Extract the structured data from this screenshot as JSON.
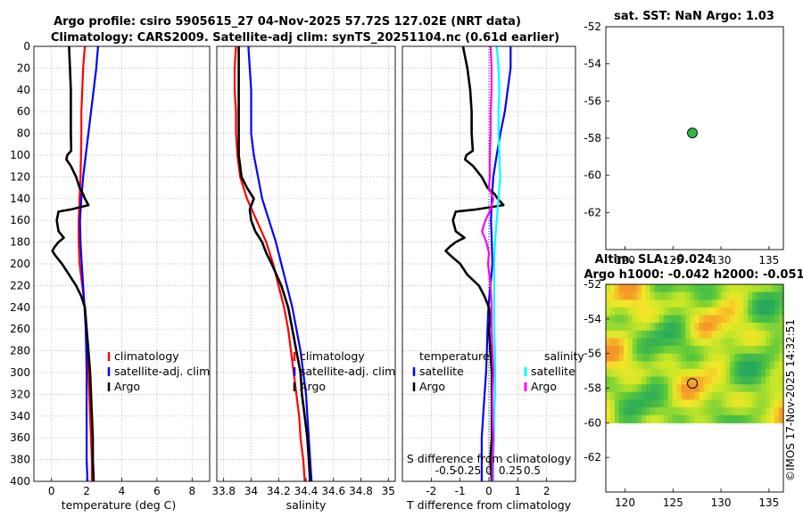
{
  "colors": {
    "climatology": "#ff0000",
    "satellite": "#0000ff",
    "argo": "#000000",
    "satellite_s": "#00ffff",
    "argo_s": "#ff00ff"
  },
  "chart_data": {
    "type": "line",
    "title_line1": "Argo profile: csiro 5905615_27 04-Nov-2025 57.72S 127.02E (NRT data)",
    "title_line2": "Climatology: CARS2009. Satellite-adj clim: synTS_20251104.nc (0.61d earlier)",
    "depth_ticks": [
      "0",
      "20",
      "40",
      "60",
      "80",
      "100",
      "120",
      "140",
      "160",
      "180",
      "200",
      "220",
      "240",
      "260",
      "280",
      "300",
      "320",
      "340",
      "360",
      "380",
      "400"
    ],
    "depth_range": [
      0,
      400
    ],
    "panels": [
      {
        "id": "temperature",
        "xlabel": "temperature (deg C)",
        "xlim": [
          -1,
          9
        ],
        "xticks": [
          0,
          2,
          4,
          6,
          8
        ],
        "xtick_labels": [
          "0",
          "2",
          "4",
          "6",
          "8"
        ],
        "legend": [
          "climatology",
          "satellite-adj. clim",
          "Argo"
        ],
        "series": [
          {
            "name": "climatology",
            "color_key": "climatology",
            "depth": [
              0,
              20,
              40,
              60,
              80,
              100,
              120,
              140,
              160,
              180,
              200,
              220,
              240,
              260,
              280,
              300,
              320,
              340,
              360,
              380,
              400
            ],
            "values": [
              1.9,
              1.8,
              1.75,
              1.7,
              1.7,
              1.68,
              1.65,
              1.6,
              1.55,
              1.55,
              1.6,
              1.75,
              1.9,
              2.0,
              2.05,
              2.1,
              2.15,
              2.2,
              2.25,
              2.3,
              2.3
            ]
          },
          {
            "name": "satellite-adj. clim",
            "color_key": "satellite",
            "depth": [
              0,
              20,
              40,
              60,
              80,
              100,
              120,
              140,
              160,
              180,
              200,
              220,
              240,
              260,
              280,
              300,
              320,
              340,
              360,
              380,
              400
            ],
            "values": [
              2.65,
              2.55,
              2.4,
              2.25,
              2.1,
              1.95,
              1.8,
              1.7,
              1.62,
              1.65,
              1.72,
              1.8,
              1.88,
              1.95,
              1.98,
              2.0,
              2.0,
              2.0,
              2.0,
              2.0,
              2.05
            ]
          },
          {
            "name": "Argo",
            "color_key": "argo",
            "depth": [
              0,
              20,
              40,
              60,
              80,
              96,
              100,
              104,
              110,
              120,
              130,
              136,
              140,
              146,
              150,
              152,
              160,
              170,
              176,
              180,
              184,
              188,
              192,
              200,
              210,
              220,
              230,
              240,
              250,
              260,
              270,
              280,
              290,
              300,
              320,
              340,
              360,
              380,
              400
            ],
            "values": [
              1.0,
              1.05,
              1.1,
              1.1,
              1.1,
              1.12,
              0.9,
              0.85,
              1.1,
              1.4,
              1.6,
              1.8,
              1.9,
              2.1,
              1.1,
              0.4,
              0.3,
              0.4,
              0.7,
              0.4,
              0.2,
              0.05,
              0.2,
              0.6,
              1.0,
              1.4,
              1.7,
              1.9,
              1.95,
              2.0,
              2.05,
              2.1,
              2.15,
              2.2,
              2.25,
              2.3,
              2.35,
              2.35,
              2.4
            ]
          }
        ]
      },
      {
        "id": "salinity",
        "xlabel": "salinity",
        "xlim": [
          33.75,
          35.05
        ],
        "xticks": [
          33.8,
          34.0,
          34.2,
          34.4,
          34.6,
          34.8,
          35.0
        ],
        "xtick_labels": [
          "33.8",
          "34",
          "34.2",
          "34.4",
          "34.6",
          "34.8",
          "35"
        ],
        "legend": [
          "climatology",
          "satellite-adj. clim",
          "Argo"
        ],
        "series": [
          {
            "name": "climatology",
            "color_key": "climatology",
            "depth": [
              0,
              20,
              40,
              60,
              80,
              100,
              120,
              140,
              160,
              180,
              200,
              220,
              240,
              260,
              280,
              300,
              320,
              340,
              360,
              380,
              400
            ],
            "values": [
              33.89,
              33.88,
              33.88,
              33.89,
              33.89,
              33.9,
              33.92,
              33.97,
              34.04,
              34.11,
              34.16,
              34.2,
              34.24,
              34.27,
              34.29,
              34.31,
              34.33,
              34.35,
              34.36,
              34.38,
              34.39
            ]
          },
          {
            "name": "satellite-adj. clim",
            "color_key": "satellite",
            "depth": [
              0,
              20,
              40,
              60,
              80,
              100,
              120,
              140,
              160,
              180,
              200,
              220,
              240,
              260,
              280,
              300,
              320,
              340,
              360,
              380,
              400
            ],
            "values": [
              33.98,
              33.99,
              34.0,
              34.0,
              34.0,
              34.02,
              34.05,
              34.08,
              34.13,
              34.18,
              34.22,
              34.26,
              34.3,
              34.33,
              34.36,
              34.38,
              34.4,
              34.41,
              34.42,
              34.43,
              34.44
            ]
          },
          {
            "name": "Argo",
            "color_key": "argo",
            "depth": [
              0,
              20,
              40,
              60,
              80,
              100,
              120,
              130,
              140,
              150,
              160,
              170,
              180,
              190,
              200,
              220,
              240,
              260,
              280,
              300,
              320,
              340,
              360,
              380,
              400
            ],
            "values": [
              33.91,
              33.91,
              33.91,
              33.91,
              33.91,
              33.91,
              33.93,
              33.97,
              34.02,
              33.99,
              34.0,
              34.03,
              34.08,
              34.11,
              34.15,
              34.22,
              34.27,
              34.3,
              34.33,
              34.36,
              34.37,
              34.39,
              34.41,
              34.42,
              34.43
            ]
          }
        ]
      },
      {
        "id": "difference",
        "xlabel": "T difference from climatology",
        "xlabel_top": "S difference from climatology",
        "xlim": [
          -3,
          3
        ],
        "xticks": [
          -2,
          -1,
          0,
          1,
          2
        ],
        "xtick_labels": [
          "-2",
          "-1",
          "0",
          "1",
          "2"
        ],
        "s_xticks": [
          -0.5,
          -0.25,
          0,
          0.25,
          0.5
        ],
        "s_xtick_labels": [
          "-0.5",
          "-0.25",
          "0",
          "0.25",
          "0.5"
        ],
        "legend_temperature_title": "temperature",
        "legend_salinity_title": "salinity",
        "legend_temperature": [
          "satellite",
          "Argo"
        ],
        "legend_salinity": [
          "satellite",
          "Argo"
        ],
        "series": [
          {
            "name": "T satellite",
            "color_key": "satellite",
            "depth": [
              0,
              20,
              40,
              60,
              80,
              100,
              120,
              140,
              160,
              180,
              200,
              220,
              240,
              260,
              280,
              300,
              320,
              340,
              360,
              380,
              400
            ],
            "values": [
              0.75,
              0.75,
              0.65,
              0.55,
              0.4,
              0.27,
              0.15,
              0.1,
              0.07,
              0.1,
              0.12,
              0.05,
              -0.02,
              -0.05,
              -0.07,
              -0.1,
              -0.15,
              -0.2,
              -0.25,
              -0.25,
              -0.25
            ]
          },
          {
            "name": "T Argo",
            "color_key": "argo",
            "depth": [
              0,
              20,
              40,
              60,
              80,
              96,
              100,
              104,
              110,
              120,
              130,
              136,
              140,
              146,
              150,
              152,
              160,
              170,
              176,
              180,
              184,
              188,
              192,
              200,
              210,
              220,
              230,
              240,
              250,
              260,
              280,
              300,
              320,
              340,
              360,
              380,
              400
            ],
            "values": [
              -0.9,
              -0.75,
              -0.65,
              -0.6,
              -0.6,
              -0.56,
              -0.78,
              -0.83,
              -0.55,
              -0.25,
              -0.05,
              0.2,
              0.3,
              0.5,
              -0.45,
              -1.15,
              -1.25,
              -1.15,
              -0.85,
              -1.15,
              -1.35,
              -1.5,
              -1.35,
              -1.0,
              -0.75,
              -0.35,
              -0.15,
              0.0,
              0.05,
              0.0,
              0.05,
              0.1,
              0.1,
              0.1,
              0.1,
              0.05,
              0.1
            ]
          },
          {
            "name": "S satellite",
            "color_key": "satellite_s",
            "depth": [
              0,
              20,
              40,
              60,
              80,
              100,
              120,
              140,
              160,
              180,
              200,
              220,
              240,
              260,
              280,
              300,
              320,
              340,
              360,
              380,
              400
            ],
            "values": [
              0.09,
              0.11,
              0.12,
              0.11,
              0.11,
              0.12,
              0.13,
              0.11,
              0.09,
              0.07,
              0.06,
              0.06,
              0.06,
              0.06,
              0.07,
              0.07,
              0.07,
              0.06,
              0.06,
              0.05,
              0.05
            ]
          },
          {
            "name": "S Argo",
            "color_key": "argo_s",
            "depth": [
              0,
              20,
              40,
              60,
              80,
              100,
              120,
              130,
              140,
              150,
              160,
              170,
              180,
              190,
              200,
              220,
              240,
              260,
              280,
              300,
              320,
              340,
              360,
              380,
              400
            ],
            "values": [
              0.02,
              0.03,
              0.03,
              0.02,
              0.02,
              0.01,
              0.01,
              0.0,
              0.05,
              0.02,
              -0.04,
              -0.08,
              -0.03,
              0.0,
              -0.01,
              0.02,
              0.03,
              0.03,
              0.04,
              0.05,
              0.04,
              0.04,
              0.05,
              0.04,
              0.04
            ]
          }
        ]
      },
      {
        "id": "sat_sst_map",
        "type": "scatter",
        "title": "sat. SST: NaN Argo: 1.03",
        "xlim": [
          118,
          136.5
        ],
        "ylim": [
          -64,
          -52
        ],
        "xticks": [
          120,
          125,
          130,
          135
        ],
        "xtick_labels": [
          "120",
          "125",
          "130",
          "135"
        ],
        "yticks": [
          -52,
          -54,
          -56,
          -58,
          -60,
          -62
        ],
        "ytick_labels": [
          "-52",
          "-54",
          "-56",
          "-58",
          "-60",
          "-62"
        ],
        "argo_position": {
          "lon": 127.02,
          "lat": -57.72
        },
        "marker_color": "#2db84a"
      },
      {
        "id": "sla_map",
        "type": "heatmap",
        "title_line1": "Altim. SLA: -0.024",
        "title_line2": "Argo h1000: -0.042 h2000: -0.051",
        "xlim": [
          118,
          136.5
        ],
        "ylim": [
          -64,
          -52
        ],
        "data_lat_range": [
          -60,
          -52
        ],
        "xticks": [
          120,
          125,
          130,
          135
        ],
        "xtick_labels": [
          "120",
          "125",
          "130",
          "135"
        ],
        "yticks": [
          -52,
          -54,
          -56,
          -58,
          -60,
          -62
        ],
        "ytick_labels": [
          "-52",
          "-54",
          "-56",
          "-58",
          "-60",
          "-62"
        ],
        "argo_position": {
          "lon": 127.02,
          "lat": -57.72
        }
      }
    ]
  },
  "watermark": "©IMOS 17-Nov-2025 14:32:51"
}
